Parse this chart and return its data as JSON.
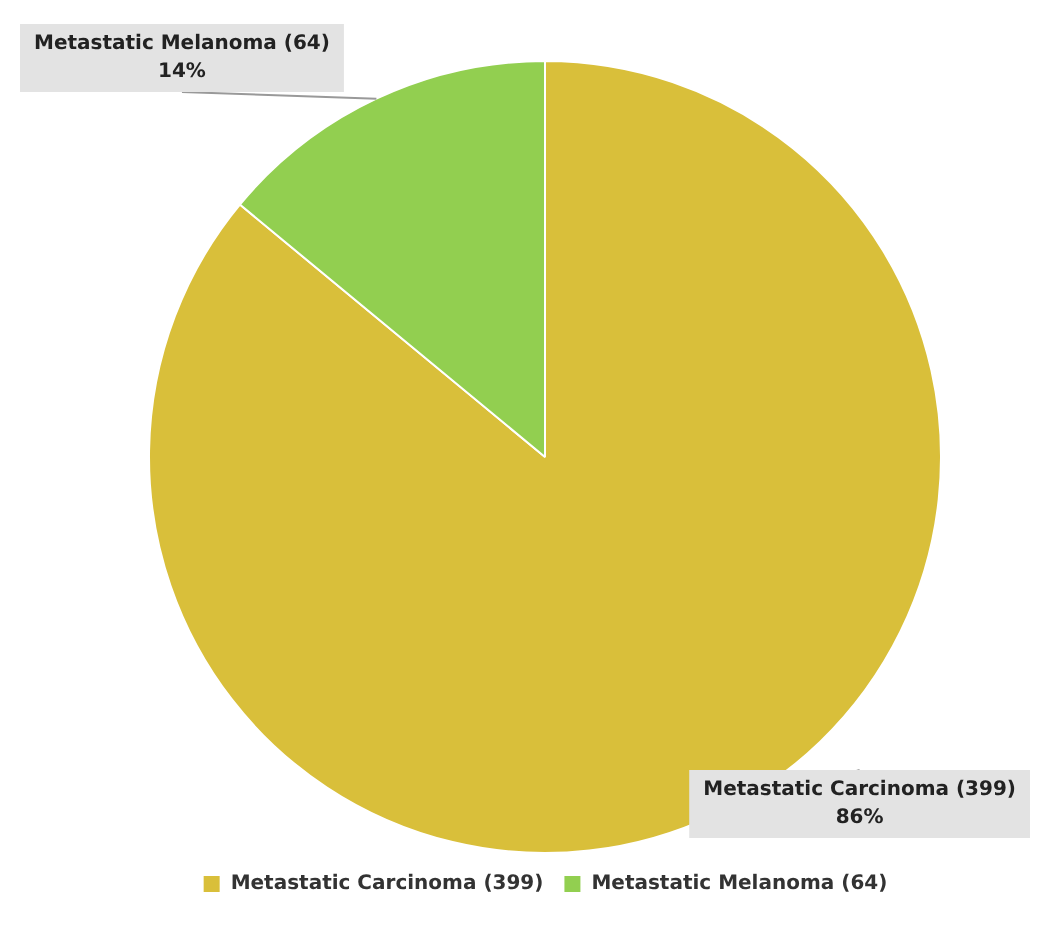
{
  "chart_data": {
    "type": "pie",
    "categories": [
      "Metastatic Carcinoma (399)",
      "Metastatic Melanoma (64)"
    ],
    "values": [
      86,
      14
    ],
    "colors": [
      "#d9bf3a",
      "#92cf50"
    ],
    "value_labels": [
      "86%",
      "14%"
    ],
    "legend": "bottom"
  }
}
